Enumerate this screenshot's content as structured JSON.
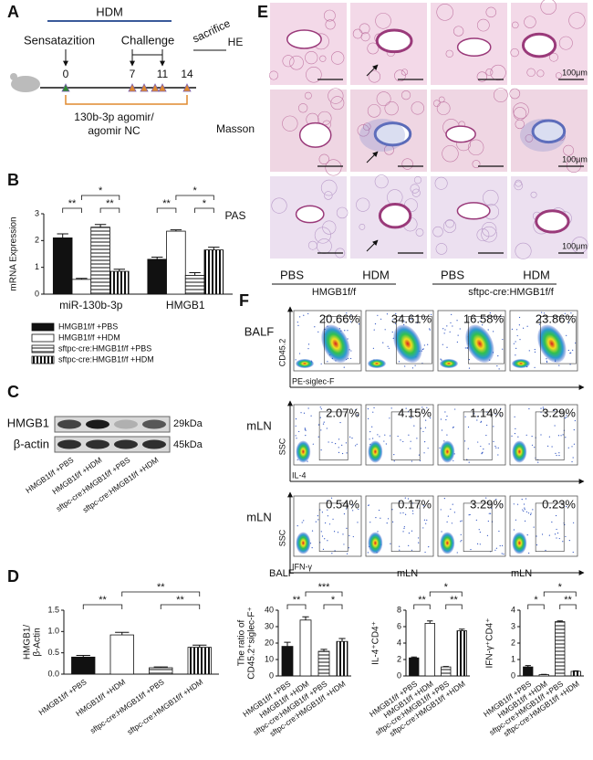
{
  "panel_labels": [
    "A",
    "B",
    "C",
    "D",
    "E",
    "F"
  ],
  "timeline": {
    "top_label": "HDM",
    "phases": [
      "Sensatazition",
      "Challenge",
      "sacrifice"
    ],
    "days": [
      "0",
      "7",
      "11",
      "14"
    ],
    "treatment": [
      "130b-3p agomir/",
      "agomir NC"
    ]
  },
  "blot": {
    "bands": [
      "HMGB1",
      "β-actin"
    ],
    "sizes": [
      "29kDa",
      "45kDa"
    ],
    "lanes": [
      "HMGB1f/f +PBS",
      "HMGB1f/f +HDM",
      "sftpc-cre:HMGB1f/f +PBS",
      "sftpc-cre:HMGB1f/f +HDM"
    ]
  },
  "histology": {
    "stains": [
      "HE",
      "Masson",
      "PAS"
    ],
    "scale_bar": "100μm",
    "groups": [
      {
        "treatments": [
          "PBS",
          "HDM"
        ],
        "genotype": "HMGB1f/f"
      },
      {
        "treatments": [
          "PBS",
          "HDM"
        ],
        "genotype": "sftpc-cre:HMGB1f/f"
      }
    ]
  },
  "flow": {
    "rows": [
      {
        "sample": "BALF",
        "y_axis": "CD45.2",
        "x_axis": "PE-siglec-F",
        "percentages": [
          "20.66%",
          "34.61%",
          "16.58%",
          "23.86%"
        ]
      },
      {
        "sample": "mLN",
        "y_axis": "SSC",
        "x_axis": "IL-4",
        "percentages": [
          "2.07%",
          "4.15%",
          "1.14%",
          "3.29%"
        ]
      },
      {
        "sample": "mLN",
        "y_axis": "SSC",
        "x_axis": "IFN-γ",
        "percentages": [
          "0.54%",
          "0.17%",
          "3.29%",
          "0.23%"
        ]
      }
    ]
  },
  "chart_data": [
    {
      "type": "grouped_bar",
      "ylabel": [
        "mRNA  Expression"
      ],
      "categories": [
        "miR-130b-3p",
        "HMGB1"
      ],
      "ylim": [
        0,
        3
      ],
      "yticks": [
        0,
        1,
        2,
        3
      ],
      "series": [
        {
          "name": "HMGB1f/f +PBS",
          "color": "#111111",
          "pattern": "solid",
          "values": [
            2.1,
            1.3
          ],
          "errors": [
            0.15,
            0.08
          ]
        },
        {
          "name": "HMGB1f/f +HDM",
          "color": "#ffffff",
          "pattern": "solid",
          "values": [
            0.55,
            2.35
          ],
          "errors": [
            0.04,
            0.05
          ]
        },
        {
          "name": "sftpc-cre:HMGB1f/f +PBS",
          "color": "#888888",
          "pattern": "hstripe",
          "values": [
            2.5,
            0.7
          ],
          "errors": [
            0.1,
            0.1
          ]
        },
        {
          "name": "sftpc-cre:HMGB1f/f +HDM",
          "color": "#111111",
          "pattern": "vstripe",
          "values": [
            0.85,
            1.65
          ],
          "errors": [
            0.08,
            0.1
          ]
        }
      ],
      "annotations": [
        "**",
        "*",
        "**",
        "**",
        "*",
        "*"
      ]
    },
    {
      "type": "bar",
      "ylabel": [
        "HMGB1/",
        "β-Actin"
      ],
      "categories": [
        "HMGB1f/f +PBS",
        "HMGB1f/f +HDM",
        "sftpc-cre:HMGB1f/f +PBS",
        "sftpc-cre:HMGB1f/f +HDM"
      ],
      "values": [
        0.4,
        0.92,
        0.15,
        0.63
      ],
      "errors": [
        0.04,
        0.06,
        0.02,
        0.05
      ],
      "colors": [
        "#111111",
        "#ffffff",
        "#888888",
        "#111111"
      ],
      "patterns": [
        "solid",
        "solid",
        "hstripe",
        "vstripe"
      ],
      "ylim": [
        0,
        1.5
      ],
      "yticks": [
        {
          "value": 0,
          "label": "0.0"
        },
        0.5,
        {
          "value": 1,
          "label": "1.0"
        },
        1.5
      ],
      "annotations": [
        "**",
        "**",
        "**"
      ]
    },
    {
      "type": "bar",
      "title": "BALF",
      "ylabel": [
        "The ratio of",
        "CD45.2⁺siglec-F⁺"
      ],
      "categories": [
        "HMGB1f/f +PBS",
        "HMGB1f/f +HDM",
        "sftpc-cre:HMGB1f/f +PBS",
        "sftpc-cre:HMGB1f/f +HDM"
      ],
      "values": [
        18,
        34,
        15,
        21
      ],
      "errors": [
        2.5,
        2,
        1.2,
        1.8
      ],
      "colors": [
        "#111111",
        "#ffffff",
        "#888888",
        "#111111"
      ],
      "patterns": [
        "solid",
        "solid",
        "hstripe",
        "vstripe"
      ],
      "ylim": [
        0,
        40
      ],
      "yticks": [
        0,
        10,
        20,
        30,
        40
      ],
      "annotations": [
        "**",
        "***",
        "*"
      ]
    },
    {
      "type": "bar",
      "title": "mLN",
      "ylabel": [
        "IL-4⁺CD4⁺"
      ],
      "categories": [
        "HMGB1f/f +PBS",
        "HMGB1f/f +HDM",
        "sftpc-cre:HMGB1f/f +PBS",
        "sftpc-cre:HMGB1f/f +HDM"
      ],
      "values": [
        2.2,
        6.4,
        1.1,
        5.5
      ],
      "errors": [
        0.1,
        0.3,
        0.05,
        0.2
      ],
      "colors": [
        "#111111",
        "#ffffff",
        "#888888",
        "#111111"
      ],
      "patterns": [
        "solid",
        "solid",
        "hstripe",
        "vstripe"
      ],
      "ylim": [
        0,
        8
      ],
      "yticks": [
        0,
        2,
        4,
        6,
        8
      ],
      "annotations": [
        "**",
        "*",
        "**"
      ]
    },
    {
      "type": "bar",
      "title": "mLN",
      "ylabel": [
        "IFN-γ⁺CD4⁺"
      ],
      "categories": [
        "HMGB1f/f +PBS",
        "HMGB1f/f +HDM",
        "sftpc-cre:HMGB1f/f +PBS",
        "sftpc-cre:HMGB1f/f +HDM"
      ],
      "values": [
        0.55,
        0.08,
        3.3,
        0.28
      ],
      "errors": [
        0.08,
        0.02,
        0.05,
        0.03
      ],
      "colors": [
        "#111111",
        "#ffffff",
        "#888888",
        "#111111"
      ],
      "patterns": [
        "solid",
        "solid",
        "hstripe",
        "vstripe"
      ],
      "ylim": [
        0,
        4
      ],
      "yticks": [
        0,
        1,
        2,
        3,
        4
      ],
      "annotations": [
        "*",
        "*",
        "**"
      ]
    }
  ]
}
